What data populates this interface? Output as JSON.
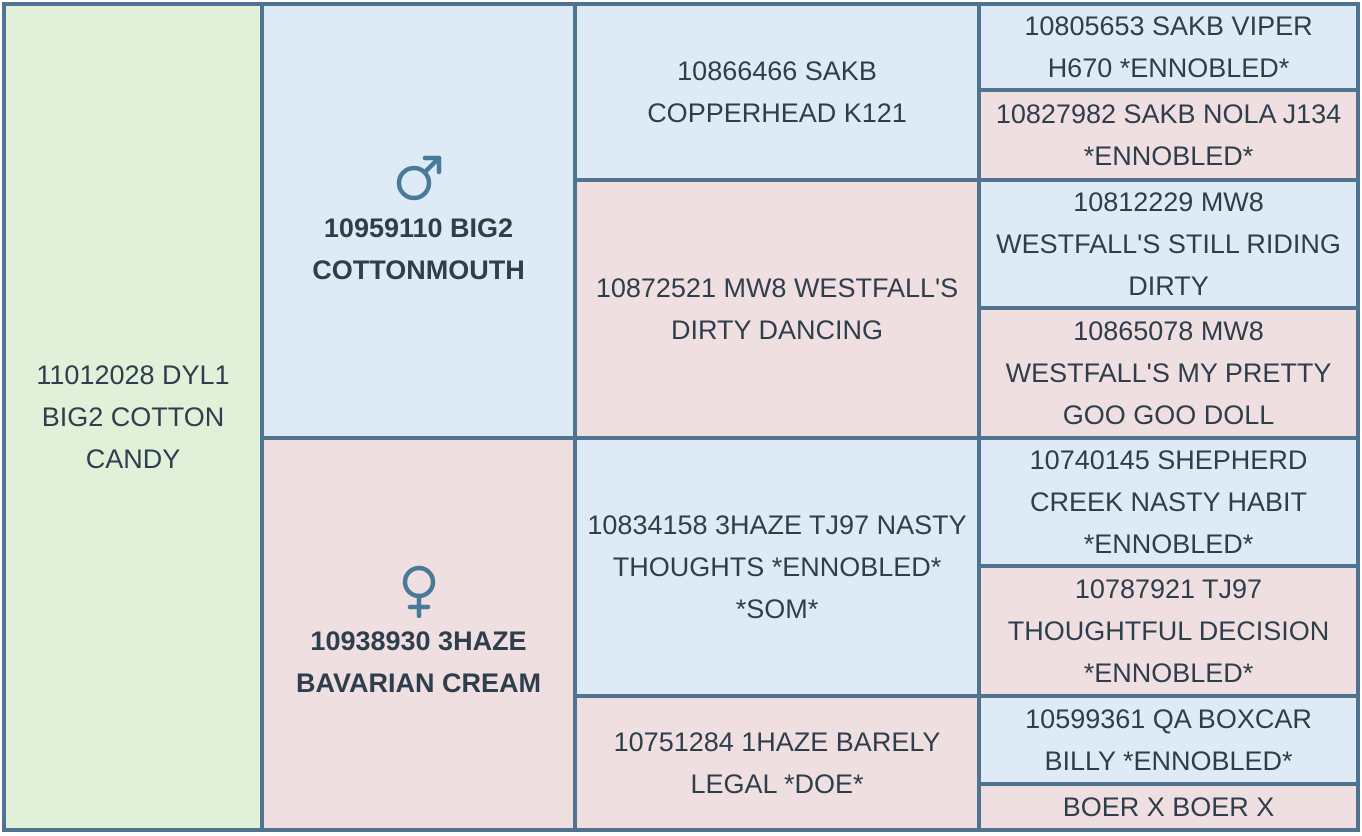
{
  "pedigree": {
    "subject": {
      "label": "11012028 DYL1 BIG2 COTTON CANDY"
    },
    "sire": {
      "label": "10959110 BIG2 COTTONMOUTH",
      "symbol": "male-symbol"
    },
    "dam": {
      "label": "10938930 3HAZE BAVARIAN CREAM",
      "symbol": "female-symbol"
    },
    "sire_sire": {
      "label": "10866466 SAKB COPPERHEAD K121"
    },
    "sire_dam": {
      "label": "10872521 MW8 WESTFALL'S DIRTY DANCING"
    },
    "dam_sire": {
      "label": "10834158 3HAZE TJ97 NASTY THOUGHTS *ENNOBLED* *SOM*"
    },
    "dam_dam": {
      "label": "10751284 1HAZE BARELY LEGAL *DOE*"
    },
    "great_grandparents": [
      {
        "label": "10805653 SAKB VIPER H670 *ENNOBLED*"
      },
      {
        "label": "10827982 SAKB NOLA J134 *ENNOBLED*"
      },
      {
        "label": "10812229 MW8 WESTFALL'S STILL RIDING DIRTY"
      },
      {
        "label": "10865078 MW8 WESTFALL'S MY PRETTY GOO GOO DOLL"
      },
      {
        "label": "10740145 SHEPHERD CREEK NASTY HABIT *ENNOBLED*"
      },
      {
        "label": "10787921 TJ97 THOUGHTFUL DECISION *ENNOBLED*"
      },
      {
        "label": "10599361 QA BOXCAR BILLY *ENNOBLED*"
      },
      {
        "label": "BOER X BOER X"
      }
    ]
  },
  "colors": {
    "male": "#deeaf6",
    "female": "#f0dfe0",
    "subject": "#e1f0d9",
    "border": "#50748f",
    "text": "#2e3e4c",
    "symbol": "#4a7a99"
  }
}
